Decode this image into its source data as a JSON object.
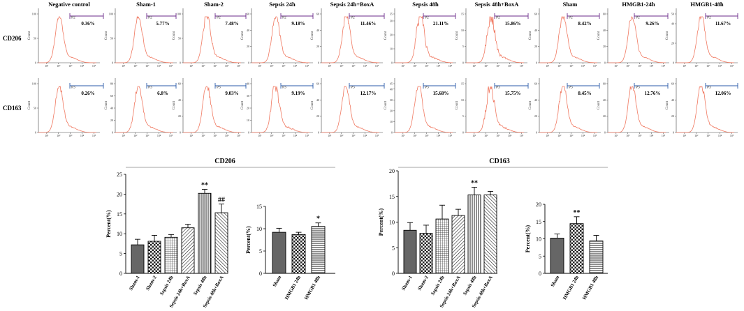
{
  "chart_data": [
    {
      "type": "histogram-grid",
      "title": "Flow cytometry histograms",
      "columns": [
        "Negative control",
        "Sham-1",
        "Sham-2",
        "Sepsis 24h",
        "Sepsis 24h+BoxA",
        "Sepsis 48h",
        "Sepsis 48h+BoxA",
        "Sham",
        "HMGB1-24h",
        "HMGB1-48h"
      ],
      "rows": [
        {
          "label": "CD206",
          "gate": "P2",
          "gate_color": "#6a2a8a",
          "x_ticks": [
            "10¹",
            "10²",
            "10³",
            "10⁴",
            "10⁵"
          ],
          "ylabel": "Count",
          "panels": [
            {
              "percent": "0.36%",
              "ymax": 100,
              "yticks": [
                0,
                50,
                100
              ],
              "peak": 2.05
            },
            {
              "percent": "5.77%",
              "ymax": 100,
              "yticks": [
                0,
                50,
                100
              ],
              "peak": 2.25
            },
            {
              "percent": "7.48%",
              "ymax": 100,
              "yticks": [
                0,
                50,
                100
              ],
              "peak": 2.3
            },
            {
              "percent": "9.18%",
              "ymax": 60,
              "yticks": [
                0,
                20,
                40,
                60
              ],
              "peak": 2.35
            },
            {
              "percent": "11.46%",
              "ymax": 60,
              "yticks": [
                0,
                20,
                40,
                60
              ],
              "peak": 2.4
            },
            {
              "percent": "21.11%",
              "ymax": 35,
              "yticks": [
                0,
                5,
                10,
                15,
                20,
                25,
                30,
                35
              ],
              "peak": 2.45
            },
            {
              "percent": "15.86%",
              "ymax": 15,
              "yticks": [
                0,
                5,
                10,
                15
              ],
              "peak": 2.4
            },
            {
              "percent": "8.42%",
              "ymax": 60,
              "yticks": [
                0,
                20,
                40,
                60
              ],
              "peak": 2.3
            },
            {
              "percent": "9.26%",
              "ymax": 60,
              "yticks": [
                0,
                20,
                40,
                60
              ],
              "peak": 2.35
            },
            {
              "percent": "11.67%",
              "ymax": 50,
              "yticks": [
                0,
                10,
                20,
                30,
                40,
                50
              ],
              "peak": 2.4
            }
          ]
        },
        {
          "label": "CD163",
          "gate": "P3",
          "gate_color": "#2a5aa8",
          "x_ticks": [
            "10¹",
            "10²",
            "10³",
            "10⁴",
            "10⁵"
          ],
          "ylabel": "Count",
          "panels": [
            {
              "percent": "0.26%",
              "ymax": 100,
              "yticks": [
                0,
                50,
                100
              ],
              "peak": 2.05
            },
            {
              "percent": "6.8%",
              "ymax": 80,
              "yticks": [
                0,
                20,
                40,
                60,
                80
              ],
              "peak": 2.25
            },
            {
              "percent": "9.03%",
              "ymax": 60,
              "yticks": [
                0,
                20,
                40,
                60
              ],
              "peak": 2.3
            },
            {
              "percent": "9.19%",
              "ymax": 40,
              "yticks": [
                0,
                5,
                10,
                15,
                20,
                25,
                30,
                35,
                40
              ],
              "peak": 2.3
            },
            {
              "percent": "12.17%",
              "ymax": 60,
              "yticks": [
                0,
                20,
                40,
                60
              ],
              "peak": 2.35
            },
            {
              "percent": "15.68%",
              "ymax": 45,
              "yticks": [
                0,
                5,
                10,
                15,
                20,
                25,
                30,
                35,
                40,
                45
              ],
              "peak": 2.3
            },
            {
              "percent": "15.75%",
              "ymax": 15,
              "yticks": [
                0,
                5,
                10,
                15
              ],
              "peak": 2.35
            },
            {
              "percent": "8.45%",
              "ymax": 60,
              "yticks": [
                0,
                20,
                40,
                60
              ],
              "peak": 2.3
            },
            {
              "percent": "12.76%",
              "ymax": 60,
              "yticks": [
                0,
                20,
                40,
                60
              ],
              "peak": 2.35
            },
            {
              "percent": "12.06%",
              "ymax": 60,
              "yticks": [
                0,
                20,
                40,
                60
              ],
              "peak": 2.4
            }
          ]
        }
      ]
    },
    {
      "type": "bar",
      "title": "CD206",
      "ylabel": "Percent(%)",
      "ylim": [
        0,
        25
      ],
      "yticks": [
        0,
        5,
        10,
        15,
        20,
        25
      ],
      "categories": [
        "Sham-1",
        "Sham-2",
        "Sepsis 24h",
        "Sepsis 24h+BoxA",
        "Sepsis 48h",
        "Sepsis 48h+BoxA"
      ],
      "values": [
        7.2,
        8.1,
        9.1,
        11.5,
        20.2,
        15.3
      ],
      "errors": [
        1.4,
        1.5,
        0.7,
        0.9,
        1.0,
        2.2
      ],
      "patterns": [
        "solid",
        "check",
        "grid",
        "hatch-fwd",
        "vert",
        "hatch-back"
      ],
      "annotations": [
        "",
        "",
        "",
        "",
        "**",
        "##"
      ]
    },
    {
      "type": "bar",
      "title": "",
      "ylabel": "Percent(%)",
      "ylim": [
        0,
        15
      ],
      "yticks": [
        0,
        5,
        10,
        15
      ],
      "categories": [
        "Sham",
        "HMGB1 24h",
        "HMGB1 48h"
      ],
      "values": [
        9.2,
        8.7,
        10.5
      ],
      "errors": [
        0.9,
        0.5,
        0.8
      ],
      "patterns": [
        "solid",
        "check",
        "horiz"
      ],
      "annotations": [
        "",
        "",
        "*"
      ]
    },
    {
      "type": "bar",
      "title": "CD163",
      "ylabel": "Percent(%)",
      "ylim": [
        0,
        20
      ],
      "yticks": [
        0,
        5,
        10,
        15,
        20
      ],
      "categories": [
        "Sham-1",
        "Sham-2",
        "Sepsis 24h",
        "Sepsis 24h+BoxA",
        "Sepsis 48h",
        "Sepsis 48h+BoxA"
      ],
      "values": [
        8.4,
        7.8,
        10.6,
        11.3,
        15.3,
        15.3
      ],
      "errors": [
        1.5,
        1.6,
        2.7,
        1.2,
        1.5,
        0.7
      ],
      "patterns": [
        "solid",
        "check",
        "grid",
        "hatch-fwd",
        "vert",
        "hatch-back"
      ],
      "annotations": [
        "",
        "",
        "",
        "",
        "**",
        ""
      ]
    },
    {
      "type": "bar",
      "title": "",
      "ylabel": "Percent(%)",
      "ylim": [
        0,
        20
      ],
      "yticks": [
        0,
        5,
        10,
        15,
        20
      ],
      "categories": [
        "Sham",
        "HMGB1 24h",
        "HMGB1 48h"
      ],
      "values": [
        10.2,
        14.4,
        9.4
      ],
      "errors": [
        1.2,
        2.0,
        1.6
      ],
      "patterns": [
        "solid",
        "check",
        "horiz"
      ],
      "annotations": [
        "",
        "**",
        ""
      ]
    }
  ]
}
